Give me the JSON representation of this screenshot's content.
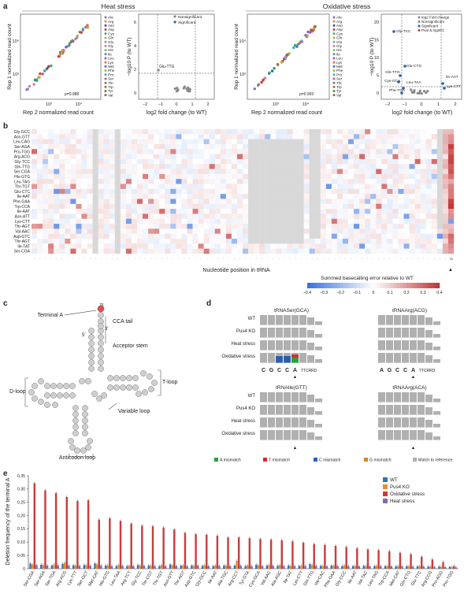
{
  "panel_letters": {
    "a": "a",
    "b": "b",
    "c": "c",
    "d": "d",
    "e": "e"
  },
  "panel_a": {
    "heat_title": "Heat stress",
    "ox_title": "Oxidative stress",
    "scatter_ylabel": "Rep 1 normalized read count",
    "scatter_xlabel": "Rep 2 normalized read count",
    "volcano_ylabel": "−log10 P (to WT)",
    "volcano_xlabel": "log2 fold change (to WT)",
    "heat_pvalue": "p=0.988",
    "ox_pvalue": "p=0.993",
    "heat_legend_top": [
      "Nonsignificant",
      "Significant"
    ],
    "ox_legend_top": [
      "log2 Fold change",
      "Nonsignificant",
      "Significant",
      "Pval & log2FC"
    ],
    "legend_aa": [
      "Ala",
      "Arg",
      "Asn",
      "Asp",
      "Cys",
      "Gln",
      "Glu",
      "Gly",
      "His",
      "Ile",
      "Leu",
      "Lys",
      "Met",
      "Phe",
      "Pro",
      "Ser",
      "Thr",
      "Trp",
      "Tyr",
      "Val"
    ],
    "heat_volcano_label": "Glu-TTG",
    "ox_volcano_labels": [
      "Gly-TCC",
      "Gln-TTG",
      "Glu-CTG",
      "Cys-GCA",
      "Leu-TAA",
      "Phe-TGA",
      "Ile-AAT",
      "Lys-CTT"
    ],
    "scatter_ticks_x": [
      "10³",
      "10⁴"
    ],
    "scatter_ticks_y": [
      "10³",
      "10⁴"
    ],
    "volcano_ticks_x": [
      "−2",
      "−1",
      "0",
      "1",
      "2"
    ],
    "heat_volcano_ticks_y": [
      "0",
      "2",
      "4",
      "6"
    ],
    "ox_volcano_ticks_y": [
      "0",
      "5",
      "10",
      "15",
      "20"
    ]
  },
  "panel_b": {
    "row_labels": [
      "Gly-GCC",
      "Asn-GTT",
      "Leu-CAG",
      "Ser-AGA",
      "Pro-TGG",
      "Arg-ACG",
      "Gly-TCC",
      "Gln-TTG",
      "Ser-CGA",
      "His-GTG",
      "Leu-TAG",
      "Thr-TGT",
      "Glu-CTC",
      "Ile-AAT",
      "Phe-GAA",
      "Trp-CCA",
      "Ile-AAT",
      "Asn-ATT",
      "Lys-CTT",
      "Thr-AGT",
      "Val-AAC",
      "Asp-GTC",
      "Thr-AGT",
      "Ile-TAT",
      "Ser-CGA"
    ],
    "xlabel": "Nucleotide position in tRNA",
    "colorbar_label": "Summed basecalling error relative to WT",
    "colorbar_ticks": [
      "−0.4",
      "−0.3",
      "−0.2",
      "−0.1",
      "0",
      "0.1",
      "0.2",
      "0.3",
      "0.4"
    ],
    "last_col_label": "76"
  },
  "panel_c": {
    "terminal_a": "Terminal A",
    "cca_tail": "CCA tail",
    "acceptor_stem": "Acceptor stem",
    "t_loop": "T-loop",
    "d_loop": "D-loop",
    "variable_loop": "Variable loop",
    "anticodon_loop": "Anticodon loop",
    "five_prime": "5′",
    "three_prime": "3′",
    "pos76": "76"
  },
  "panel_d": {
    "titles": [
      "tRNASer(GCA)",
      "tRNAArg(ACG)",
      "tRNAIle(GTT)",
      "tRNAArg(ACA)"
    ],
    "row_labels": [
      "WT",
      "Pus4 KO",
      "Heat stress",
      "Oxidative stress"
    ],
    "seq1": [
      "C",
      "G",
      "C",
      "C",
      "A"
    ],
    "seq2": [
      "A",
      "G",
      "C",
      "C",
      "A"
    ],
    "t_label": "TTCRRD",
    "legend": [
      "A mismatch",
      "T mismatch",
      "C mismatch",
      "G mismatch",
      "Match to reference"
    ],
    "colors": {
      "A": "#2e9e3e",
      "T": "#d0302f",
      "C": "#2d5fa8",
      "G": "#cf8a2a",
      "match": "#b0b0b0"
    }
  },
  "panel_e": {
    "ylabel": "Deletion frequency of the terminal A",
    "legend": [
      "WT",
      "Pus4 KO",
      "Oxidative stress",
      "Heat stress"
    ],
    "colors": {
      "WT": "#3a6fb0",
      "Pus4 KO": "#e0902e",
      "Oxidative stress": "#c93c3c",
      "Heat stress": "#7a6fae"
    }
  },
  "chart_data": [
    {
      "type": "bar",
      "ylabel": "Deletion frequency of the terminal A",
      "ylim": [
        0,
        0.35
      ],
      "yticks": [
        "0",
        "0.05",
        "0.10",
        "0.15",
        "0.20",
        "0.25",
        "0.30",
        "0.35"
      ],
      "categories": [
        "Ser-CGA",
        "Ser-AGA",
        "Ser-TGA",
        "Arg-ACG",
        "Lys-TTT",
        "Ser-GCT",
        "Met-CAT",
        "His-GTG",
        "Leu-TAA",
        "Arg-TCT",
        "Gly-TCC",
        "Thr-CGT",
        "Thr-TGT",
        "Asn-GTT",
        "Thr-AGT",
        "Asp-GTC",
        "Gly-GCC",
        "Ile-AAT",
        "Ala-TGC",
        "Arg-CCT",
        "Tyr-GTA",
        "Cys-GCA",
        "Val-AAC",
        "Ala-AGC",
        "Ile-TAT",
        "Lys-CTT",
        "Gln-TTG",
        "Val-CAC",
        "Phe-GAA",
        "Gly-CCC",
        "Ile-AAT",
        "Val-TAC",
        "Leu-TAG",
        "Trp-CCA",
        "Met-CAT",
        "Gln-CTG",
        "Glu-TTC",
        "Arg-CCG",
        "Pro-AGG",
        "Pro-TGG"
      ],
      "series": [
        {
          "name": "WT",
          "values": [
            0.02,
            0.015,
            0.012,
            0.018,
            0.013,
            0.014,
            0.02,
            0.012,
            0.01,
            0.01,
            0.014,
            0.012,
            0.01,
            0.016,
            0.012,
            0.012,
            0.011,
            0.01,
            0.012,
            0.012,
            0.01,
            0.015,
            0.012,
            0.011,
            0.012,
            0.011,
            0.018,
            0.011,
            0.012,
            0.01,
            0.01,
            0.011,
            0.01,
            0.01,
            0.009,
            0.01,
            0.009,
            0.008,
            0.008,
            0.007
          ]
        },
        {
          "name": "Pus4 KO",
          "values": [
            0.015,
            0.014,
            0.016,
            0.022,
            0.012,
            0.013,
            0.016,
            0.012,
            0.014,
            0.011,
            0.012,
            0.011,
            0.014,
            0.013,
            0.012,
            0.011,
            0.013,
            0.012,
            0.011,
            0.03,
            0.012,
            0.012,
            0.014,
            0.013,
            0.01,
            0.011,
            0.013,
            0.01,
            0.011,
            0.012,
            0.01,
            0.01,
            0.011,
            0.01,
            0.009,
            0.009,
            0.01,
            0.008,
            0.007,
            0.006
          ]
        },
        {
          "name": "Oxidative stress",
          "values": [
            0.322,
            0.295,
            0.285,
            0.27,
            0.255,
            0.258,
            0.185,
            0.19,
            0.18,
            0.17,
            0.162,
            0.16,
            0.155,
            0.148,
            0.135,
            0.13,
            0.128,
            0.124,
            0.118,
            0.118,
            0.115,
            0.112,
            0.11,
            0.107,
            0.103,
            0.098,
            0.093,
            0.09,
            0.086,
            0.082,
            0.077,
            0.073,
            0.07,
            0.066,
            0.06,
            0.055,
            0.045,
            0.035,
            0.025,
            0.01
          ]
        },
        {
          "name": "Heat stress",
          "values": [
            0.014,
            0.012,
            0.013,
            0.012,
            0.011,
            0.012,
            0.012,
            0.01,
            0.011,
            0.01,
            0.011,
            0.01,
            0.01,
            0.011,
            0.01,
            0.012,
            0.01,
            0.011,
            0.01,
            0.011,
            0.01,
            0.01,
            0.011,
            0.01,
            0.01,
            0.01,
            0.011,
            0.009,
            0.01,
            0.01,
            0.009,
            0.009,
            0.01,
            0.009,
            0.009,
            0.008,
            0.008,
            0.007,
            0.006,
            0.005
          ]
        }
      ]
    }
  ]
}
